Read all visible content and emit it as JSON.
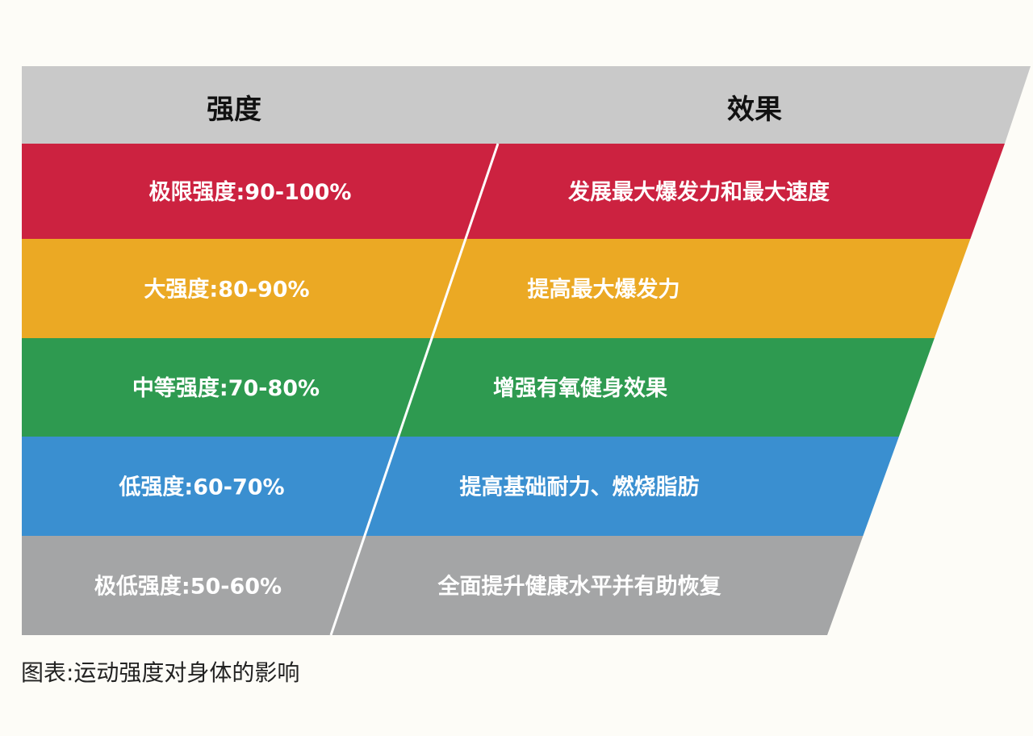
{
  "header": {
    "left": "强度",
    "right": "效果",
    "color": "#c9c9c9"
  },
  "rows": [
    {
      "intensity": "极限强度:90-100%",
      "effect": "发展最大爆发力和最大速度",
      "color": "#cc2240"
    },
    {
      "intensity": "大强度:80-90%",
      "effect": "提高最大爆发力",
      "color": "#eba924"
    },
    {
      "intensity": "中等强度:70-80%",
      "effect": "增强有氧健身效果",
      "color": "#2e9a50"
    },
    {
      "intensity": "低强度:60-70%",
      "effect": "提高基础耐力、燃烧脂肪",
      "color": "#3a8fd0"
    },
    {
      "intensity": "极低强度:50-60%",
      "effect": "全面提升健康水平并有助恢复",
      "color": "#a4a5a6"
    }
  ],
  "caption": "图表:运动强度对身体的影响"
}
